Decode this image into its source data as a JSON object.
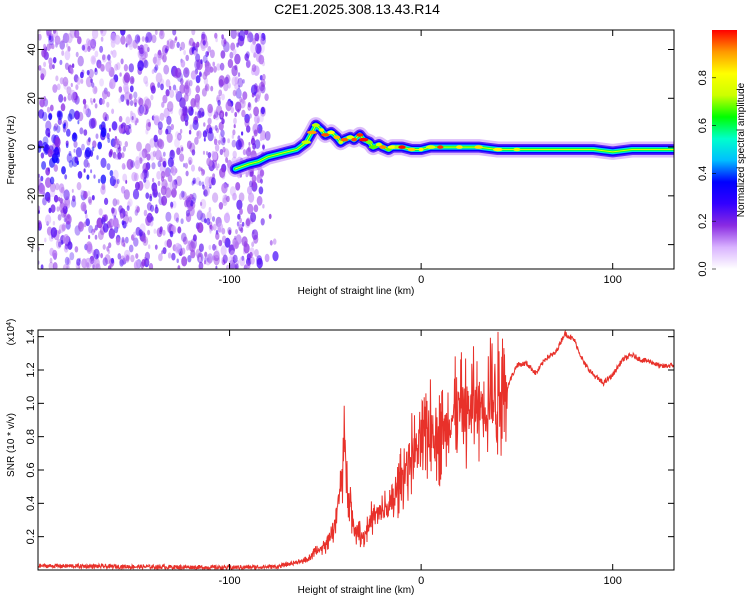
{
  "title": "C2E1.2025.308.13.43.R14",
  "chart_data": [
    {
      "type": "heatmap",
      "name": "spectrogram",
      "xlabel": "Height of straight line (km)",
      "ylabel": "Frequency (Hz)",
      "xlim": [
        -200,
        132
      ],
      "ylim": [
        -50,
        48
      ],
      "xticks": [
        -100,
        0,
        100
      ],
      "xtick_labels": [
        "-100",
        "0",
        "100"
      ],
      "yticks": [
        -40,
        -20,
        0,
        20,
        40
      ],
      "ytick_labels": [
        "-40",
        "-20",
        "0",
        "20",
        "40"
      ],
      "noise_region_x": [
        -200,
        -82
      ],
      "ridge": {
        "x": [
          -97,
          -90,
          -85,
          -80,
          -75,
          -70,
          -65,
          -60,
          -57,
          -55,
          -52,
          -50,
          -47,
          -44,
          -42,
          -40,
          -37,
          -35,
          -32,
          -30,
          -27,
          -25,
          -22,
          -20,
          -17,
          -15,
          -12,
          -10,
          -5,
          0,
          5,
          10,
          20,
          30,
          40,
          50,
          60,
          70,
          80,
          90,
          100,
          110,
          120,
          132
        ],
        "y": [
          -9,
          -7,
          -6,
          -4,
          -3,
          -2,
          -1,
          2,
          6,
          9,
          7,
          5,
          6,
          4,
          2,
          3,
          4,
          3,
          5,
          3,
          2,
          0,
          1,
          0,
          -1,
          0,
          0,
          0,
          -1,
          -1,
          0,
          0,
          0,
          0,
          -1,
          -1,
          -1,
          -1,
          -1,
          -1,
          -2,
          -1,
          -1,
          -1
        ]
      },
      "colorbar": {
        "label": "Normalized spectral amplitude",
        "ticks": [
          0.0,
          0.2,
          0.4,
          0.6,
          0.8
        ],
        "tick_labels": [
          "0.0",
          "0.2",
          "0.4",
          "0.6",
          "0.8"
        ],
        "range": [
          0,
          1
        ],
        "colors": [
          "#ffffff",
          "#d9b3ff",
          "#8a2be2",
          "#3300ff",
          "#0000ff",
          "#00bfff",
          "#00ffcc",
          "#00ff00",
          "#ccff00",
          "#ffff00",
          "#ff9900",
          "#ff0000"
        ]
      }
    },
    {
      "type": "line",
      "name": "snr",
      "xlabel": "Height of straight line (km)",
      "ylabel": "SNR (10 * v/v)",
      "y_multiplier_label": "(x10",
      "y_multiplier_exp": "4",
      "y_multiplier_close": ")",
      "xlim": [
        -200,
        132
      ],
      "ylim": [
        0,
        14400
      ],
      "xticks": [
        -100,
        0,
        100
      ],
      "xtick_labels": [
        "-100",
        "0",
        "100"
      ],
      "yticks": [
        2000,
        4000,
        6000,
        8000,
        10000,
        12000,
        14000
      ],
      "ytick_labels": [
        "0.2",
        "0.4",
        "0.6",
        "0.8",
        "1.0",
        "1.2",
        "1.4"
      ],
      "color": "#e8312a",
      "x": [
        -200,
        -150,
        -100,
        -75,
        -60,
        -50,
        -45,
        -42,
        -40,
        -38,
        -35,
        -30,
        -25,
        -20,
        -15,
        -10,
        -5,
        0,
        5,
        10,
        15,
        20,
        25,
        30,
        35,
        40,
        45,
        50,
        55,
        60,
        65,
        70,
        75,
        80,
        85,
        90,
        95,
        100,
        105,
        110,
        115,
        120,
        125,
        132
      ],
      "y": [
        250,
        200,
        150,
        200,
        600,
        1500,
        2800,
        5000,
        7500,
        5000,
        2500,
        2000,
        3300,
        3500,
        3900,
        5600,
        7000,
        7500,
        8600,
        7900,
        9100,
        9500,
        9700,
        9900,
        10200,
        10500,
        11000,
        12300,
        12400,
        11800,
        12700,
        13000,
        14200,
        13800,
        12400,
        11700,
        11200,
        11700,
        12600,
        12900,
        12600,
        12500,
        12200,
        12300
      ]
    }
  ]
}
